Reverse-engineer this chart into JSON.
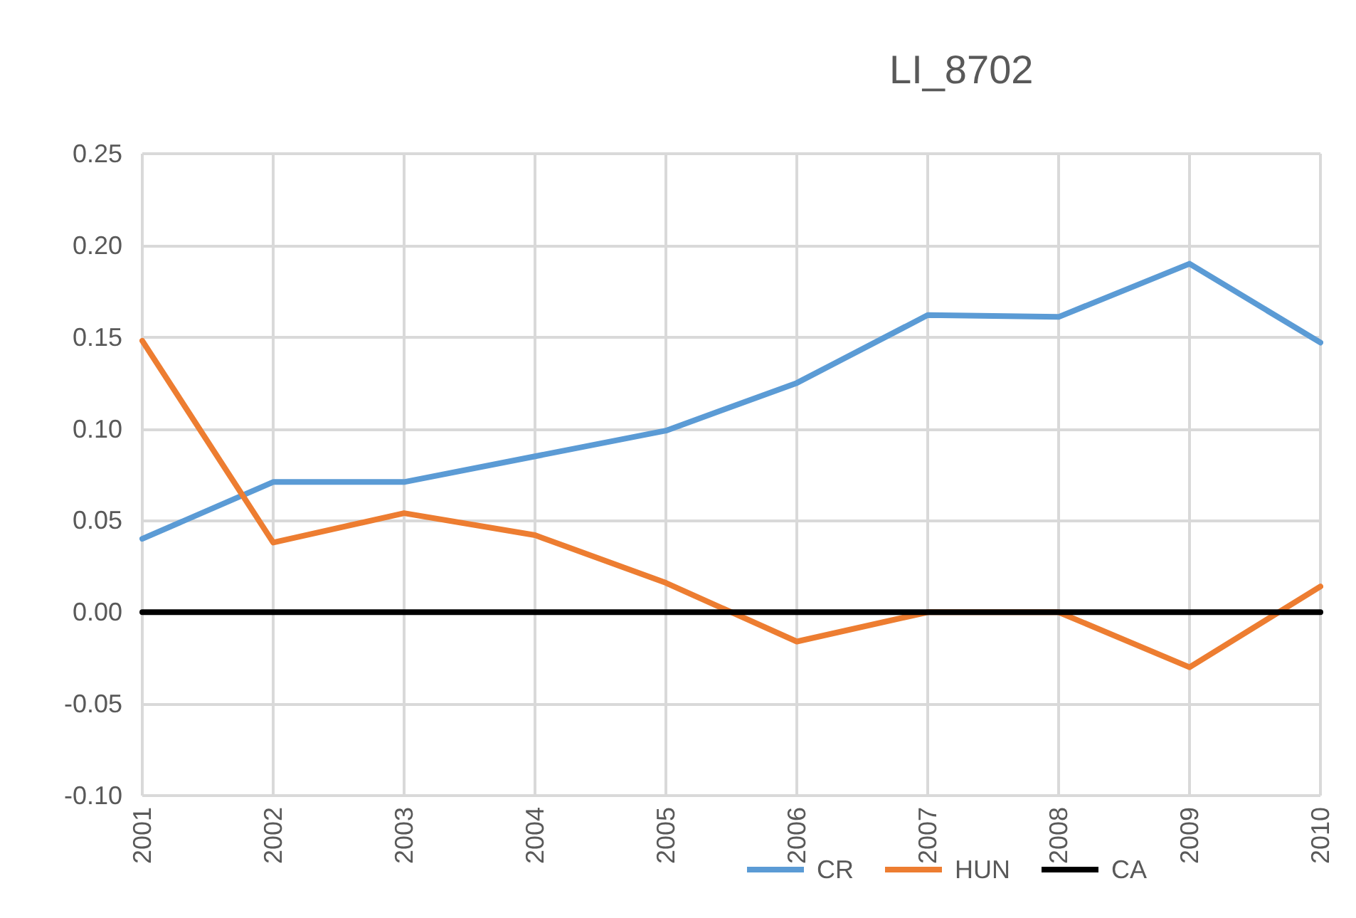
{
  "chart_data": {
    "type": "line",
    "title": "LI_8702",
    "categories": [
      "2001",
      "2002",
      "2003",
      "2004",
      "2005",
      "2006",
      "2007",
      "2008",
      "2009",
      "2010"
    ],
    "series": [
      {
        "name": "CR",
        "color": "#5b9bd5",
        "values": [
          0.04,
          0.071,
          0.071,
          0.085,
          0.099,
          0.125,
          0.162,
          0.161,
          0.19,
          0.147
        ]
      },
      {
        "name": "HUN",
        "color": "#ed7d31",
        "values": [
          0.148,
          0.038,
          0.054,
          0.042,
          0.016,
          -0.016,
          0,
          0,
          -0.03,
          0.014
        ]
      },
      {
        "name": "CA",
        "color": "#000000",
        "values": [
          0,
          0,
          0,
          0,
          0,
          0,
          0,
          0,
          0,
          0
        ]
      }
    ],
    "ylim": [
      -0.1,
      0.25
    ],
    "yticks": [
      {
        "value": -0.1,
        "label": "-0.10"
      },
      {
        "value": -0.05,
        "label": "-0.05"
      },
      {
        "value": 0,
        "label": "0.00"
      },
      {
        "value": 0.05,
        "label": "0.05"
      },
      {
        "value": 0.1,
        "label": "0.10"
      },
      {
        "value": 0.15,
        "label": "0.15"
      },
      {
        "value": 0.2,
        "label": "0.20"
      },
      {
        "value": 0.25,
        "label": "0.25"
      }
    ],
    "grid": true,
    "legend": "bottom",
    "marker": "none",
    "line_style": "solid"
  }
}
